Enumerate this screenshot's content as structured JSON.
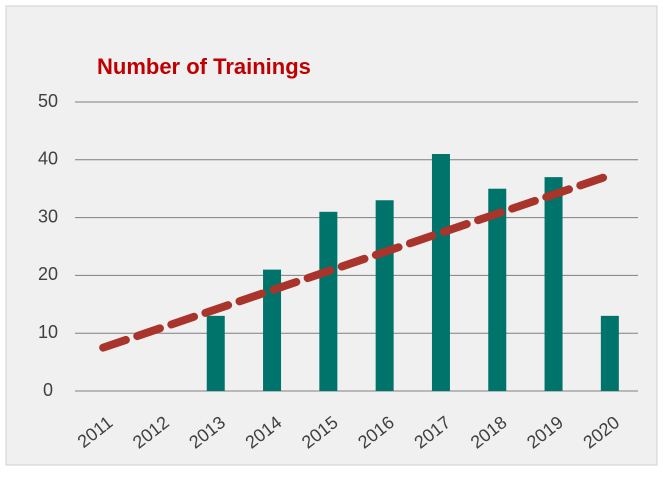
{
  "chart_data": {
    "type": "bar",
    "title": "Number of Trainings",
    "categories": [
      "2011",
      "2012",
      "2013",
      "2014",
      "2015",
      "2016",
      "2017",
      "2018",
      "2019",
      "2020"
    ],
    "values": [
      0,
      0,
      13,
      21,
      31,
      33,
      41,
      35,
      37,
      13
    ],
    "color": "#00736a",
    "trend": {
      "values": [
        7.5,
        37.3
      ],
      "color": "#a9342c"
    },
    "ylim": [
      0,
      50
    ],
    "yticks": [
      0,
      10,
      20,
      30,
      40,
      50
    ],
    "grid": true
  }
}
